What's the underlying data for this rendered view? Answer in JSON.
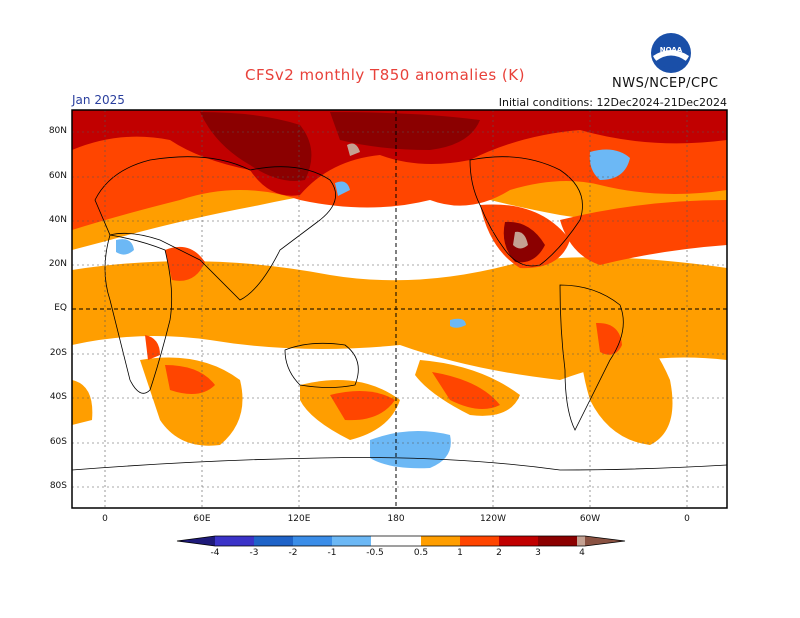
{
  "header": {
    "title": "CFSv2 monthly T850 anomalies (K)",
    "agency": "NWS/NCEP/CPC",
    "month": "Jan 2025",
    "initial_conditions": "Initial conditions: 12Dec2024-21Dec2024"
  },
  "logo": {
    "icon": "noaa-logo"
  },
  "map": {
    "lat_labels": [
      "80N",
      "60N",
      "40N",
      "20N",
      "EQ",
      "20S",
      "40S",
      "60S",
      "80S"
    ],
    "lon_labels": [
      "0",
      "60E",
      "120E",
      "180",
      "120W",
      "60W",
      "0"
    ],
    "grid": true
  },
  "colorbar": {
    "labels": [
      "-4",
      "-3",
      "-2",
      "-1",
      "-0.5",
      "0.5",
      "1",
      "2",
      "3",
      "4"
    ],
    "colors": [
      "#1e1a7a",
      "#3b33c8",
      "#1f63c8",
      "#3a8de8",
      "#6cb8f5",
      "#ffffff",
      "#ff9e00",
      "#ff4500",
      "#c10000",
      "#8b0000",
      "#c4a192",
      "#8a5242"
    ]
  }
}
